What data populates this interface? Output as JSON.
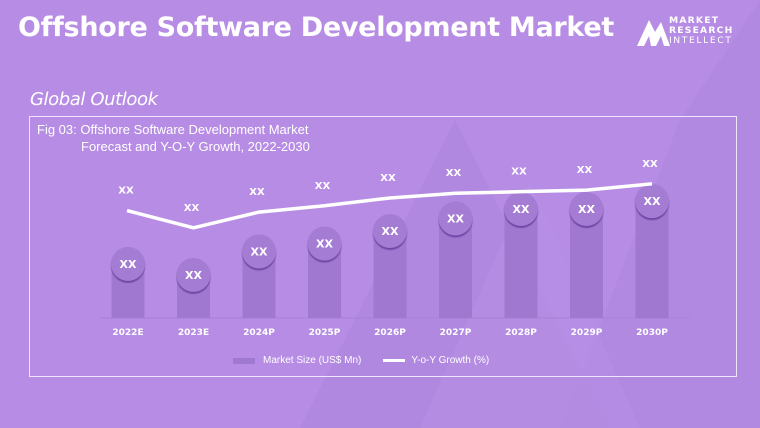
{
  "header": {
    "title": "Offshore Software Development Market",
    "subtitle": "Global Outlook"
  },
  "logo": {
    "line1": "MARKET",
    "line2": "RESEARCH",
    "line3": "INTELLECT"
  },
  "colors": {
    "background": "#b78ce4",
    "bar": "#a078cf",
    "bar_cap": "#a57bd3",
    "line": "#ffffff",
    "text": "#ffffff"
  },
  "chart_data": {
    "type": "bar",
    "title": "Fig 03: Offshore Software Development Market",
    "subtitle": "Forecast and Y-O-Y Growth, 2022-2030",
    "xlabel": "",
    "ylabel": "",
    "grid": false,
    "legend_position": "bottom-center",
    "categories": [
      "2022E",
      "2023E",
      "2024P",
      "2025P",
      "2026P",
      "2027P",
      "2028P",
      "2029P",
      "2030P"
    ],
    "series": [
      {
        "name": "Market Size (US$ Mn)",
        "type": "bar",
        "values": [
          44,
          37,
          52,
          57,
          65,
          73,
          79,
          79,
          84
        ],
        "labels": [
          "XX",
          "XX",
          "XX",
          "XX",
          "XX",
          "XX",
          "XX",
          "XX",
          "XX"
        ]
      },
      {
        "name": "Y-o-Y Growth (%)",
        "type": "line",
        "values": [
          57,
          46,
          56,
          60,
          65,
          68,
          69,
          70,
          74
        ],
        "labels": [
          "XX",
          "XX",
          "XX",
          "XX",
          "XX",
          "XX",
          "XX",
          "XX",
          "XX"
        ]
      }
    ],
    "ylim": [
      0,
      100
    ]
  }
}
